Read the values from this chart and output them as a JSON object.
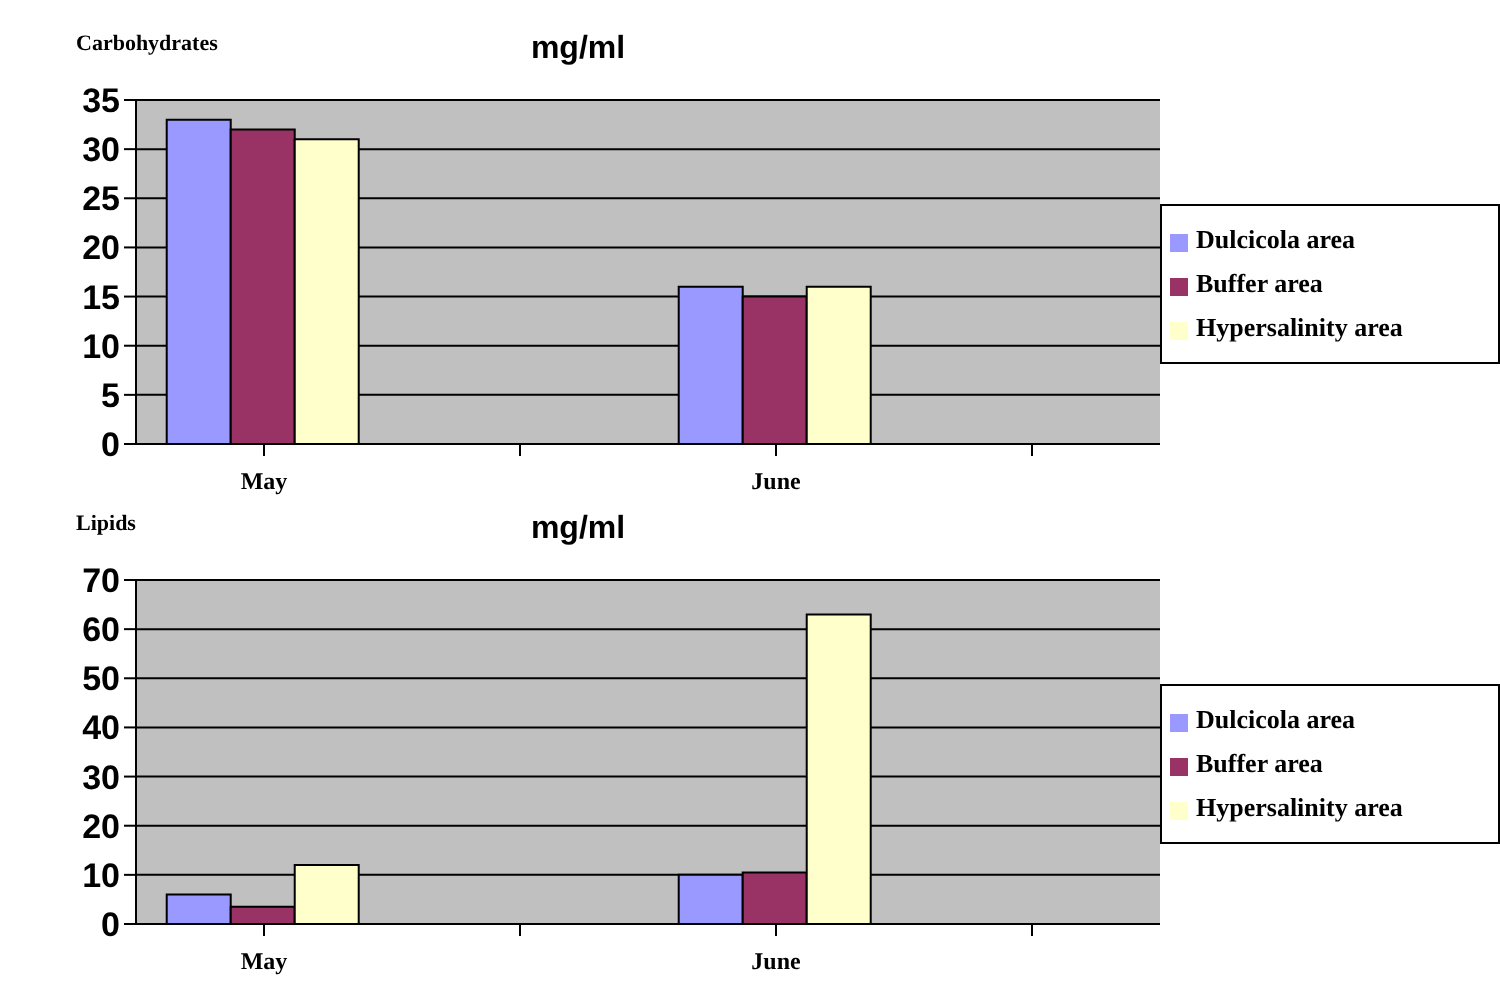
{
  "chart_data": [
    {
      "type": "bar",
      "title": "mg/ml",
      "ylabel": "Carbohydrates",
      "categories": [
        "May",
        null,
        "June",
        null
      ],
      "series": [
        {
          "name": "Dulcicola area",
          "color": "#9999ff",
          "values": [
            33,
            null,
            16,
            null
          ]
        },
        {
          "name": "Buffer area",
          "color": "#993366",
          "values": [
            32,
            null,
            15,
            null
          ]
        },
        {
          "name": "Hypersalinity area",
          "color": "#ffffcc",
          "values": [
            31,
            null,
            16,
            null
          ]
        }
      ],
      "ylim": [
        0,
        35
      ],
      "yticks": [
        0,
        5,
        10,
        15,
        20,
        25,
        30,
        35
      ],
      "grid": "y",
      "legend": "right"
    },
    {
      "type": "bar",
      "title": "mg/ml",
      "ylabel": "Lipids",
      "categories": [
        "May",
        null,
        "June",
        null
      ],
      "series": [
        {
          "name": "Dulcicola area",
          "color": "#9999ff",
          "values": [
            6,
            null,
            10,
            null
          ]
        },
        {
          "name": "Buffer area",
          "color": "#993366",
          "values": [
            3.5,
            null,
            10.5,
            null
          ]
        },
        {
          "name": "Hypersalinity area",
          "color": "#ffffcc",
          "values": [
            12,
            null,
            63,
            null
          ]
        }
      ],
      "ylim": [
        0,
        70
      ],
      "yticks": [
        0,
        10,
        20,
        30,
        40,
        50,
        60,
        70
      ],
      "grid": "y",
      "legend": "right"
    }
  ]
}
